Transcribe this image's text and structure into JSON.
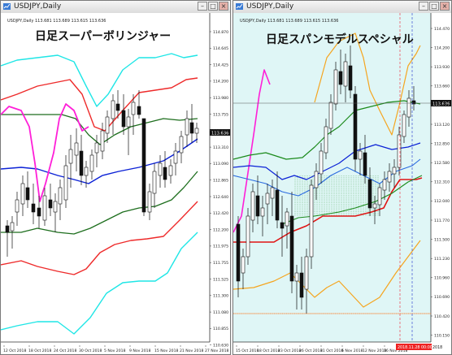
{
  "colors": {
    "left_background": "#ffffff",
    "right_background": "#dff6f6",
    "band_inner": "#1aa6b7",
    "band_outer": "#ee2a2a",
    "band_outer3": "#1fe6e6",
    "middle_line": "#0b21d6",
    "lagging_line": "#ff1fd8",
    "sigma1": "#1d6e1d",
    "senkou_a": "#1b8a1b",
    "kijun": "#e01414",
    "tenkan": "#2a6adf",
    "spans_upper": "#f5a51f",
    "fib_level": "#ff6600",
    "cloud_dots": "#1b8a1b"
  },
  "left_window": {
    "title": "USDJPY,Daily",
    "chart_label": "USDJPY,Daily",
    "ohlc": "113.681 113.689 113.615 113.636",
    "heading": "日足スーパーボリンジャー",
    "current_price": "113.636",
    "y_ticks": [
      "114.870",
      "114.645",
      "114.425",
      "114.200",
      "113.980",
      "113.755",
      "113.525",
      "113.310",
      "113.090",
      "112.865",
      "112.640",
      "112.420",
      "112.200",
      "111.975",
      "111.755",
      "111.525",
      "111.300",
      "111.080",
      "110.855",
      "110.630"
    ],
    "x_ticks": [
      "12 Oct 2018",
      "18 Oct 2018",
      "24 Oct 2018",
      "30 Oct 2018",
      "5 Nov 2018",
      "9 Nov 2018",
      "15 Nov 2018",
      "21 Nov 2018",
      "27 Nov 2018"
    ]
  },
  "right_window": {
    "title": "USDJPY,Daily",
    "chart_label": "USDJPY,Daily",
    "ohlc": "113.681 113.689 113.615 113.636",
    "heading": "日足スパンモデルスペシャル",
    "current_price": "113.636",
    "y_ticks": [
      "114.470",
      "114.200",
      "113.930",
      "113.660",
      "113.390",
      "113.120",
      "112.850",
      "112.580",
      "112.310",
      "112.040",
      "111.770",
      "111.500",
      "111.230",
      "110.960",
      "110.690",
      "110.420",
      "110.150"
    ],
    "x_ticks": [
      "15 Oct 2018",
      "18 Oct 2018",
      "23 Oct 2018",
      "26 Oct 2018",
      "31 Oct 2018",
      "6 Nov 2018",
      "12 Nov 2018",
      "16 Nov 2018"
    ],
    "x_tick_highlight": "2018.11.28 00:00",
    "x_tick_highlight_end": "2018"
  }
}
